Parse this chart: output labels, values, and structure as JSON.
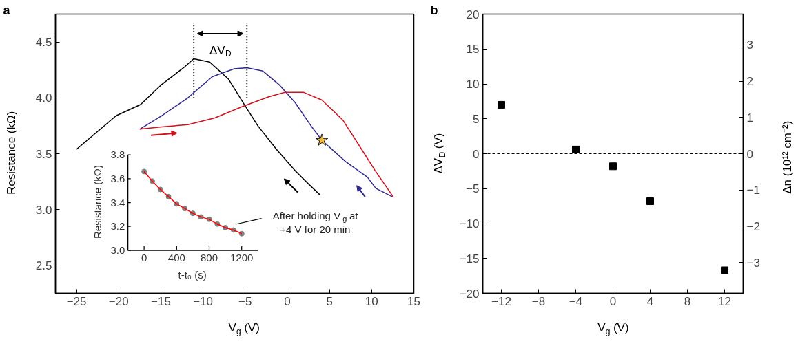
{
  "chart_data": [
    {
      "type": "line",
      "title": "a",
      "xlabel": "V$_{g}$ (V)",
      "ylabel": "Resistance (kΩ)",
      "xlim": [
        -27.5,
        15
      ],
      "ylim": [
        2.25,
        4.75
      ],
      "xticks": [
        -25,
        -20,
        -15,
        -10,
        -5,
        0,
        5,
        10,
        15
      ],
      "yticks": [
        {
          "value": 2.5,
          "label": "2.5"
        },
        {
          "value": 3.0,
          "label": "3.0"
        },
        {
          "value": 3.5,
          "label": "3.5"
        },
        {
          "value": 4.0,
          "label": "4.0"
        },
        {
          "value": 4.5,
          "label": "4.5"
        }
      ],
      "grid": false,
      "line_style": "solid",
      "series": [
        {
          "color": "#000000",
          "x": [
            3.9,
            2.5,
            0.9,
            -1.3,
            -3.5,
            -5.1,
            -7.0,
            -9.2,
            -11.1,
            -12.3,
            -14.9,
            -17.4,
            -20.3,
            -22.8,
            -25
          ],
          "values": [
            3.13,
            3.23,
            3.35,
            3.54,
            3.75,
            3.94,
            4.17,
            4.32,
            4.35,
            4.27,
            4.12,
            3.94,
            3.84,
            3.68,
            3.54
          ]
        },
        {
          "color": "#2e2a8f",
          "x": [
            12.6,
            10.5,
            9.5,
            6.9,
            4.1,
            2.8,
            0.9,
            -1.0,
            -2.9,
            -4.8,
            -6.3,
            -8.9,
            -11.8,
            -14.9,
            -17.5
          ],
          "values": [
            3.11,
            3.19,
            3.29,
            3.43,
            3.62,
            3.75,
            3.96,
            4.12,
            4.24,
            4.27,
            4.26,
            4.19,
            4.0,
            3.84,
            3.72
          ]
        },
        {
          "color": "#d0101a",
          "x": [
            -17.5,
            -14.9,
            -11.8,
            -8.6,
            -5.4,
            -2.2,
            -0.3,
            1.9,
            4.1,
            6.6,
            8.8,
            10.4,
            12.6
          ],
          "values": [
            3.72,
            3.74,
            3.76,
            3.82,
            3.92,
            4.01,
            4.05,
            4.05,
            3.98,
            3.8,
            3.54,
            3.35,
            3.11
          ]
        },
        {
          "type": "scatter",
          "marker": "star",
          "color": "#f5b942",
          "x": [
            4.1
          ],
          "values": [
            3.62
          ]
        }
      ],
      "annotations": [
        "ΔV$_{D}$"
      ],
      "ref_lines": [
        {
          "axis": "x",
          "value": -11.1,
          "line_style": "dotted",
          "color": "#000000"
        },
        {
          "axis": "x",
          "value": -4.8,
          "line_style": "dotted",
          "color": "#000000"
        }
      ]
    },
    {
      "type": "line",
      "xlabel": "t-t₀ (s)",
      "ylabel": "Resistance (kΩ)",
      "xlim": [
        -200,
        1400
      ],
      "ylim": [
        3.0,
        3.8
      ],
      "xticks": [
        0,
        400,
        800,
        1200
      ],
      "yticks": [
        {
          "value": 3.0,
          "label": "3.0"
        },
        {
          "value": 3.2,
          "label": "3.2"
        },
        {
          "value": 3.4,
          "label": "3.4"
        },
        {
          "value": 3.6,
          "label": "3.6"
        },
        {
          "value": 3.8,
          "label": "3.8"
        }
      ],
      "x": [
        0,
        100,
        200,
        300,
        400,
        500,
        600,
        700,
        800,
        900,
        1000,
        1100,
        1200
      ],
      "series": [
        {
          "type": "scatter",
          "marker": "circle",
          "color": "#808080",
          "values": [
            3.66,
            3.58,
            3.51,
            3.45,
            3.39,
            3.35,
            3.31,
            3.28,
            3.26,
            3.22,
            3.19,
            3.17,
            3.14
          ]
        },
        {
          "type": "line",
          "color": "#ff0000",
          "values": [
            3.66,
            3.58,
            3.51,
            3.45,
            3.39,
            3.35,
            3.31,
            3.28,
            3.26,
            3.22,
            3.19,
            3.17,
            3.14
          ]
        }
      ],
      "annotations": [
        "After holding V$_{g}$ at\n+4 V for 20 min"
      ]
    },
    {
      "type": "scatter",
      "title": "b",
      "xlabel": "V$_{g}$ (V)",
      "ylabel": "ΔV$_{D}$ (V)",
      "y2label": "Δn (10¹² cm⁻²)",
      "marker": "square",
      "grid": false,
      "xlim": [
        -14,
        14
      ],
      "ylim": [
        -20,
        20
      ],
      "y2lim": [
        -3.85,
        3.85
      ],
      "xticks": [
        -12,
        -8,
        -4,
        0,
        4,
        8,
        12
      ],
      "yticks": [
        -20,
        -15,
        -10,
        -5,
        0,
        5,
        10,
        15,
        20
      ],
      "y2ticks": [
        -3,
        -2,
        -1,
        0,
        1,
        2,
        3
      ],
      "x": [
        -12,
        -4,
        0,
        4,
        12
      ],
      "series": [
        {
          "color": "#000000",
          "values": [
            7.0,
            0.6,
            -1.8,
            -6.8,
            -16.7
          ]
        }
      ],
      "ref_lines": [
        {
          "axis": "y",
          "value": 0,
          "line_style": "dashed",
          "color": "#000000"
        }
      ]
    }
  ]
}
